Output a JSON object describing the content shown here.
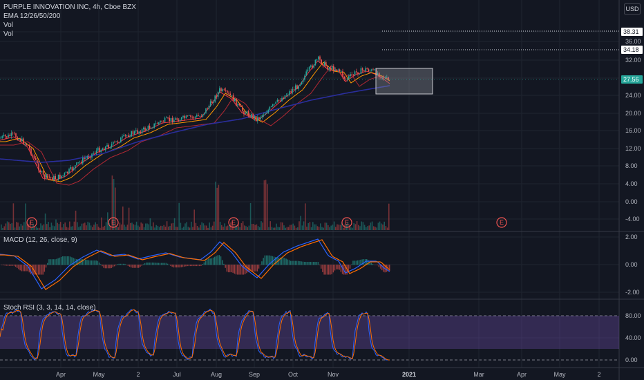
{
  "main_pane": {
    "title": "PURPLE INNOVATION INC, 4h, Cboe BZX",
    "indicators": [
      "EMA 12/26/50/200",
      "Vol",
      "Vol"
    ],
    "currency_button": "USD",
    "price_axis": [
      "40.00",
      "36.00",
      "32.00",
      "28.00",
      "24.00",
      "20.00",
      "16.00",
      "12.00",
      "8.00",
      "4.00",
      "0.00",
      "-4.00"
    ],
    "price_tags": [
      {
        "label": "38.31",
        "style": "box-white"
      },
      {
        "label": "34.18",
        "style": "box-white"
      },
      {
        "label": "27.56",
        "style": "box-green"
      }
    ],
    "earnings_marker": "E"
  },
  "macd_pane": {
    "title": "MACD (12, 26, close, 9)",
    "axis": [
      "2.00",
      "0.00",
      "-2.00"
    ]
  },
  "stoch_pane": {
    "title": "Stoch RSI (3, 3, 14, 14, close)",
    "axis": [
      "80.00",
      "40.00",
      "0.00"
    ]
  },
  "time_axis": [
    "Apr",
    "May",
    "2",
    "Jul",
    "Aug",
    "Sep",
    "Oct",
    "Nov",
    "2021",
    "Mar",
    "Apr",
    "May",
    "2"
  ],
  "colors": {
    "background": "#131722",
    "grid": "#1f2430",
    "ema_12": "#f23645",
    "ema_26": "#ff9800",
    "ema_50": "#b22833",
    "ema_200": "#2a2e9c",
    "macd_line": "#2962ff",
    "signal_line": "#ff6d00",
    "stoch_k": "#2962ff",
    "stoch_d": "#ff6d00",
    "stoch_band": "#7e57c2",
    "candle_up": "#26a69a",
    "candle_down": "#ef5350",
    "earnings": "#ef5350"
  }
}
